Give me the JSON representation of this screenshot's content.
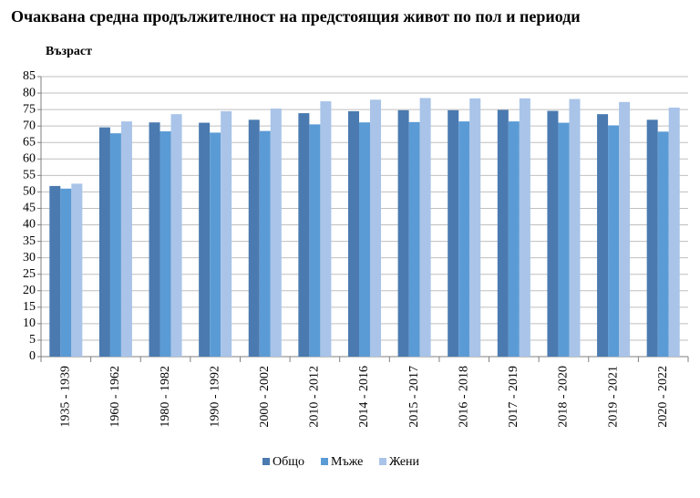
{
  "chart_data": {
    "type": "bar",
    "title": "Очаквана средна продължителност на предстоящия живот по пол и периоди",
    "y_label": "Възраст",
    "categories": [
      "1935 - 1939",
      "1960 - 1962",
      "1980 - 1982",
      "1990 - 1992",
      "2000 - 2002",
      "2010 - 2012",
      "2014 - 2016",
      "2015 - 2017",
      "2016 - 2018",
      "2017 - 2019",
      "2018 - 2020",
      "2019 - 2021",
      "2020 - 2022"
    ],
    "series": [
      {
        "name": "Общо",
        "color": "#4a7ab0",
        "values": [
          51.8,
          69.6,
          71.1,
          71.0,
          71.9,
          73.9,
          74.5,
          74.8,
          74.8,
          74.9,
          74.6,
          73.6,
          71.9
        ]
      },
      {
        "name": "Мъже",
        "color": "#5b9bd5",
        "values": [
          51.0,
          67.8,
          68.4,
          68.0,
          68.5,
          70.5,
          71.1,
          71.2,
          71.4,
          71.4,
          71.0,
          70.2,
          68.3
        ]
      },
      {
        "name": "Жени",
        "color": "#a9c4e8",
        "values": [
          52.5,
          71.4,
          73.6,
          74.5,
          75.3,
          77.5,
          78.0,
          78.5,
          78.4,
          78.4,
          78.2,
          77.3,
          75.6
        ]
      }
    ],
    "ylim": [
      0,
      85
    ],
    "yticks": [
      0,
      5,
      10,
      15,
      20,
      25,
      30,
      35,
      40,
      45,
      50,
      55,
      60,
      65,
      70,
      75,
      80,
      85
    ],
    "grid": true,
    "legend": "bottom"
  }
}
